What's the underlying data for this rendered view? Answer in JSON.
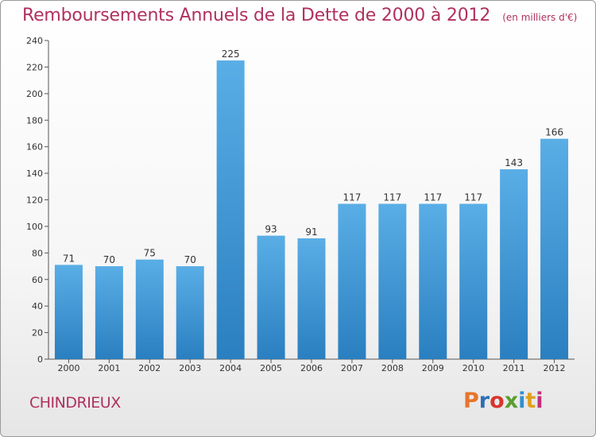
{
  "title": "Remboursements Annuels de la Dette de 2000 à 2012",
  "subtitle": "(en milliers d'€)",
  "place": "CHINDRIEUX",
  "logo": {
    "letters": [
      "P",
      "r",
      "o",
      "x",
      "i",
      "t",
      "i"
    ],
    "colors": [
      "#e8742a",
      "#2f6fb5",
      "#d8352f",
      "#5a9e2f",
      "#2f8fd0",
      "#e0a020",
      "#c0307a"
    ]
  },
  "colors": {
    "bar_top": "#5aaee6",
    "bar_bottom": "#2a7fc0",
    "title": "#b0305f"
  },
  "chart_data": {
    "type": "bar",
    "title": "Remboursements Annuels de la Dette de 2000 à 2012",
    "subtitle": "(en milliers d'€)",
    "categories": [
      "2000",
      "2001",
      "2002",
      "2003",
      "2004",
      "2005",
      "2006",
      "2007",
      "2008",
      "2009",
      "2010",
      "2011",
      "2012"
    ],
    "values": [
      71,
      70,
      75,
      70,
      225,
      93,
      91,
      117,
      117,
      117,
      117,
      143,
      166
    ],
    "ylim": [
      0,
      240
    ],
    "yticks": [
      0,
      20,
      40,
      60,
      80,
      100,
      120,
      140,
      160,
      180,
      200,
      220,
      240
    ],
    "grid": false,
    "xlabel": "",
    "ylabel": ""
  }
}
